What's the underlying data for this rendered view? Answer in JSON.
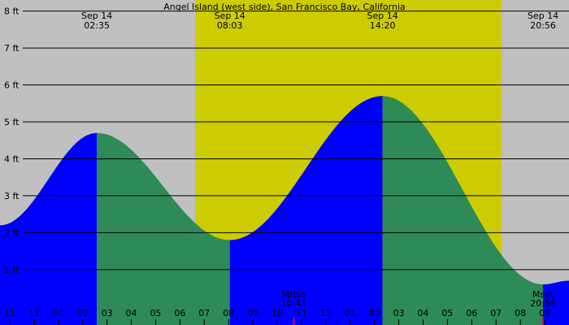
{
  "chart_data": {
    "type": "area",
    "title": "Angel Island (west side), San Francisco Bay, California",
    "ylabel": "",
    "xlabel": "",
    "y_unit": "ft",
    "ylim": [
      -0.5,
      8.3
    ],
    "x_range_hours": [
      -1.4,
      22.0
    ],
    "yticks": [
      {
        "value": 1,
        "label": "1 ft"
      },
      {
        "value": 2,
        "label": "2 ft"
      },
      {
        "value": 3,
        "label": "3 ft"
      },
      {
        "value": 4,
        "label": "4 ft"
      },
      {
        "value": 5,
        "label": "5 ft"
      },
      {
        "value": 6,
        "label": "6 ft"
      },
      {
        "value": 7,
        "label": "7 ft"
      },
      {
        "value": 8,
        "label": "8 ft"
      }
    ],
    "hour_ticks": [
      {
        "hour": -1,
        "label": "11"
      },
      {
        "hour": 0,
        "label": "12"
      },
      {
        "hour": 1,
        "label": "01"
      },
      {
        "hour": 2,
        "label": "02"
      },
      {
        "hour": 3,
        "label": "03"
      },
      {
        "hour": 4,
        "label": "04"
      },
      {
        "hour": 5,
        "label": "05"
      },
      {
        "hour": 6,
        "label": "06"
      },
      {
        "hour": 7,
        "label": "07"
      },
      {
        "hour": 8,
        "label": "08"
      },
      {
        "hour": 9,
        "label": "09"
      },
      {
        "hour": 10,
        "label": "10"
      },
      {
        "hour": 11,
        "label": "11"
      },
      {
        "hour": 12,
        "label": "12"
      },
      {
        "hour": 13,
        "label": "01"
      },
      {
        "hour": 14,
        "label": "02"
      },
      {
        "hour": 15,
        "label": "03"
      },
      {
        "hour": 16,
        "label": "04"
      },
      {
        "hour": 17,
        "label": "05"
      },
      {
        "hour": 18,
        "label": "06"
      },
      {
        "hour": 19,
        "label": "07"
      },
      {
        "hour": 20,
        "label": "08"
      },
      {
        "hour": 21,
        "label": "09"
      }
    ],
    "extrema": [
      {
        "type": "high",
        "date": "Sep 14",
        "time": "02:35",
        "hour": 2.583,
        "height": 4.7
      },
      {
        "type": "low",
        "date": "Sep 14",
        "time": "08:03",
        "hour": 8.05,
        "height": 1.8
      },
      {
        "type": "high",
        "date": "Sep 14",
        "time": "14:20",
        "hour": 14.333,
        "height": 5.7
      },
      {
        "type": "low",
        "date": "Sep 14",
        "time": "20:56",
        "hour": 20.933,
        "height": 0.6
      }
    ],
    "start_height": 2.2,
    "end_height": 0.7,
    "daylight": {
      "start_hour": 6.633,
      "end_hour": 19.233
    },
    "moon_events": [
      {
        "label": "Mrise",
        "time": "10:41",
        "hour": 10.683
      },
      {
        "label": "Mset",
        "time": "20:56",
        "hour": 20.933
      }
    ],
    "colors": {
      "night": "#c0c0c0",
      "day": "#cccc00",
      "rising": "#0000ff",
      "falling": "#2e8b57",
      "gridline": "#000000",
      "moon_tick": "#cc0066",
      "tick": "#000000"
    }
  }
}
